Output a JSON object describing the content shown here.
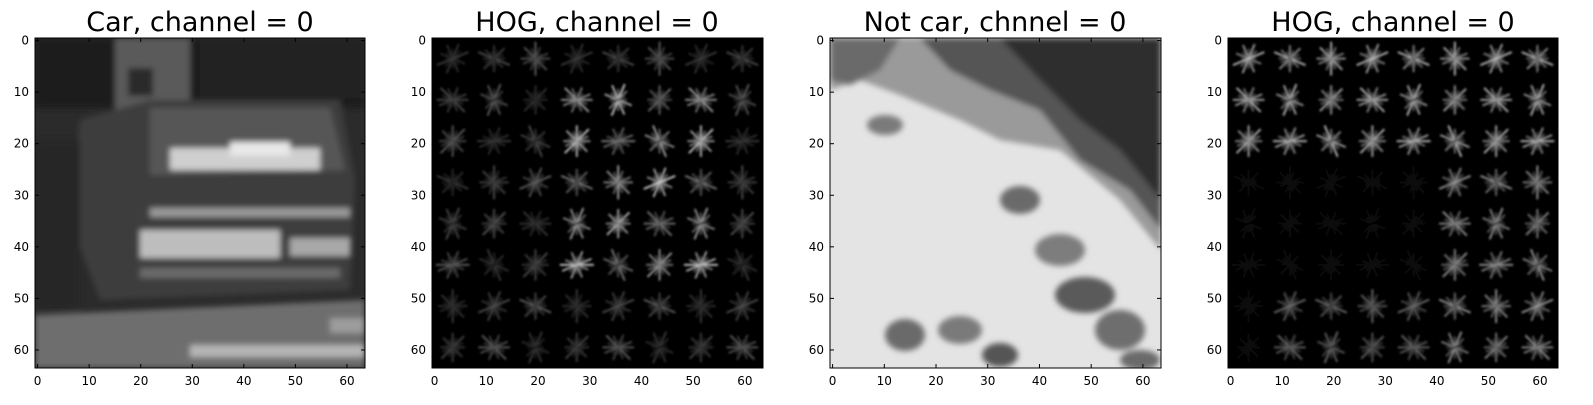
{
  "figure": {
    "panels": [
      {
        "id": "car-image",
        "title": "Car, channel = 0",
        "kind": "photo-car",
        "x_ticks": [
          "0",
          "10",
          "20",
          "30",
          "40",
          "50",
          "60"
        ],
        "y_ticks": [
          "0",
          "10",
          "20",
          "30",
          "40",
          "50",
          "60"
        ],
        "x_range": [
          0,
          64
        ],
        "y_range": [
          0,
          64
        ]
      },
      {
        "id": "car-hog",
        "title": "HOG, channel = 0",
        "kind": "hog-car",
        "x_ticks": [
          "0",
          "10",
          "20",
          "30",
          "40",
          "50",
          "60"
        ],
        "y_ticks": [
          "0",
          "10",
          "20",
          "30",
          "40",
          "50",
          "60"
        ],
        "x_range": [
          0,
          64
        ],
        "y_range": [
          0,
          64
        ]
      },
      {
        "id": "notcar-image",
        "title": "Not car, chnnel = 0",
        "kind": "photo-notcar",
        "x_ticks": [
          "0",
          "10",
          "20",
          "30",
          "40",
          "50",
          "60"
        ],
        "y_ticks": [
          "0",
          "10",
          "20",
          "30",
          "40",
          "50",
          "60"
        ],
        "x_range": [
          0,
          64
        ],
        "y_range": [
          0,
          64
        ]
      },
      {
        "id": "notcar-hog",
        "title": "HOG, channel = 0",
        "kind": "hog-notcar",
        "x_ticks": [
          "0",
          "10",
          "20",
          "30",
          "40",
          "50",
          "60"
        ],
        "y_ticks": [
          "0",
          "10",
          "20",
          "30",
          "40",
          "50",
          "60"
        ],
        "x_range": [
          0,
          64
        ],
        "y_range": [
          0,
          64
        ]
      }
    ]
  }
}
